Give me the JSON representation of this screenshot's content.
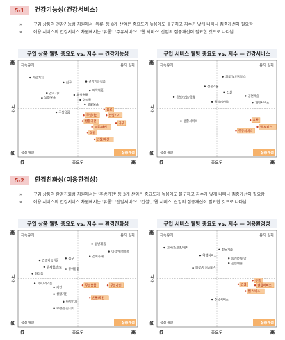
{
  "sections": [
    {
      "number": "5-1",
      "title": "건강기능성(건강서비스)",
      "bullets": [
        "구입 상품의 건강기능성 차원에서 '의류' 등 8개 산업은 중요도가 높음에도 불구하고 지수가 낮게 나타나 집중개선이 필요함",
        "이용 서비스의 건강서비스 차원에서는 '유통', '주유서비스', '웹 서비스' 산업의 집중개선이 필요한 것으로 나타남"
      ],
      "charts": [
        {
          "title": "구입 상품 웰빙 중요도 vs. 지수 — 건강기능성",
          "quadrants": [
            "지속유지",
            "유지 강화",
            "점진개선",
            "집중개선"
          ],
          "high": "高",
          "low": "低",
          "x_label": "중요도",
          "y_label": "지수",
          "xlim": [
            0,
            100
          ],
          "ylim": [
            0,
            100
          ],
          "points": [
            {
              "label": "의료기기",
              "x": 10,
              "y": 82,
              "highlight": false
            },
            {
              "label": "침구",
              "x": 38,
              "y": 77,
              "highlight": false
            },
            {
              "label": "건강기능식품",
              "x": 57,
              "y": 78,
              "highlight": false
            },
            {
              "label": "의약외품",
              "x": 60,
              "y": 69,
              "highlight": false
            },
            {
              "label": "간호기기",
              "x": 24,
              "y": 66,
              "highlight": false
            },
            {
              "label": "위생용품",
              "x": 47,
              "y": 64,
              "highlight": false
            },
            {
              "label": "유아용품",
              "x": 20,
              "y": 61,
              "highlight": false
            },
            {
              "label": "화장품",
              "x": 52,
              "y": 59,
              "highlight": false
            },
            {
              "label": "생활용품",
              "x": 56,
              "y": 54,
              "highlight": false
            },
            {
              "label": "주방용품",
              "x": 32,
              "y": 46,
              "highlight": false
            },
            {
              "label": "음료",
              "x": 72,
              "y": 49,
              "highlight": true
            },
            {
              "label": "주방가전",
              "x": 55,
              "y": 43,
              "highlight": true
            },
            {
              "label": "난방기기",
              "x": 74,
              "y": 43,
              "highlight": true
            },
            {
              "label": "생활가전",
              "x": 54,
              "y": 37,
              "highlight": true
            },
            {
              "label": "가구",
              "x": 82,
              "y": 35,
              "highlight": true
            },
            {
              "label": "의류/패션",
              "x": 62,
              "y": 31,
              "highlight": true
            },
            {
              "label": "의류",
              "x": 58,
              "y": 25,
              "highlight": true
            },
            {
              "label": "신발/패션",
              "x": 64,
              "y": 18,
              "highlight": true
            }
          ]
        },
        {
          "title": "구입 서비스 웰빙 중요도 vs. 지수 — 건강서비스",
          "quadrants": [
            "지속유지",
            "유지 강화",
            "점진개선",
            "집중개선"
          ],
          "high": "高",
          "low": "低",
          "x_label": "중요도",
          "y_label": "지수",
          "xlim": [
            0,
            100
          ],
          "ylim": [
            0,
            100
          ],
          "points": [
            {
              "label": "의료/보건서비스",
              "x": 55,
              "y": 83,
              "highlight": false
            },
            {
              "label": "전문기술",
              "x": 40,
              "y": 73,
              "highlight": false
            },
            {
              "label": "건설",
              "x": 56,
              "y": 67,
              "highlight": false
            },
            {
              "label": "은행/보험/금융",
              "x": 14,
              "y": 62,
              "highlight": false
            },
            {
              "label": "공연예술",
              "x": 74,
              "y": 63,
              "highlight": false
            },
            {
              "label": "음식/숙박업",
              "x": 46,
              "y": 57,
              "highlight": false
            },
            {
              "label": "개인서비스",
              "x": 80,
              "y": 56,
              "highlight": false
            },
            {
              "label": "생활서비스",
              "x": 20,
              "y": 37,
              "highlight": false
            },
            {
              "label": "유통",
              "x": 78,
              "y": 38,
              "highlight": true
            },
            {
              "label": "주유서비스",
              "x": 66,
              "y": 27,
              "highlight": true
            },
            {
              "label": "웹 서비스",
              "x": 84,
              "y": 31,
              "highlight": true
            }
          ]
        }
      ]
    },
    {
      "number": "5-2",
      "title": "환경친화성(이용환경성)",
      "bullets": [
        "구입 상품의 환경친화성 차원에서는 '주방가전' 등 3개 산업은 중요도가 높음에도 불구하고 지수가 낮게 나타나 집중개선이 필요함",
        "이용 서비스의 건강서비스 차원에서는 '유통', '렌탈서비스', '건설', '웹 서비스' 산업의 집중개선이 필요한 것으로 나타남"
      ],
      "charts": [
        {
          "title": "구입 상품 웰빙 중요도 vs. 지수 — 환경친화성",
          "quadrants": [
            "지속유지",
            "유지 강화",
            "점진개선",
            "집중개선"
          ],
          "high": "高",
          "low": "低",
          "x_label": "중요도",
          "y_label": "지수",
          "xlim": [
            0,
            100
          ],
          "ylim": [
            0,
            100
          ],
          "points": [
            {
              "label": "일반제품",
              "x": 62,
              "y": 86,
              "highlight": false
            },
            {
              "label": "이샵/위생용품",
              "x": 76,
              "y": 78,
              "highlight": false
            },
            {
              "label": "건축자재",
              "x": 60,
              "y": 73,
              "highlight": false
            },
            {
              "label": "침구",
              "x": 40,
              "y": 71,
              "highlight": false
            },
            {
              "label": "건강기능식품",
              "x": 18,
              "y": 69,
              "highlight": false
            },
            {
              "label": "유제품/음료",
              "x": 22,
              "y": 62,
              "highlight": false
            },
            {
              "label": "유아용품",
              "x": 40,
              "y": 60,
              "highlight": false
            },
            {
              "label": "화장품",
              "x": 12,
              "y": 55,
              "highlight": false
            },
            {
              "label": "의료/의약품",
              "x": 14,
              "y": 45,
              "highlight": false
            },
            {
              "label": "가전",
              "x": 30,
              "y": 41,
              "highlight": false
            },
            {
              "label": "생활가전",
              "x": 30,
              "y": 34,
              "highlight": false
            },
            {
              "label": "난방기기",
              "x": 38,
              "y": 26,
              "highlight": false
            },
            {
              "label": "주방용품",
              "x": 54,
              "y": 43,
              "highlight": true
            },
            {
              "label": "주방가전",
              "x": 75,
              "y": 43,
              "highlight": true
            },
            {
              "label": "신발/패션",
              "x": 60,
              "y": 30,
              "highlight": true
            },
            {
              "label": "우편/통신기기",
              "x": 30,
              "y": 19,
              "highlight": false
            }
          ]
        },
        {
          "title": "구입 서비스 웰빙 중요도 vs. 지수 — 이용환경성",
          "quadrants": [
            "지속유지",
            "유지 강화",
            "점진개선",
            "집중개선"
          ],
          "high": "高",
          "low": "低",
          "x_label": "중요도",
          "y_label": "지수",
          "xlim": [
            0,
            100
          ],
          "ylim": [
            0,
            100
          ],
          "points": [
            {
              "label": "교육/스포츠/레저",
              "x": 6,
              "y": 82,
              "highlight": false
            },
            {
              "label": "전문기술",
              "x": 52,
              "y": 80,
              "highlight": false
            },
            {
              "label": "여행서비스",
              "x": 36,
              "y": 74,
              "highlight": false
            },
            {
              "label": "통신/전화망",
              "x": 60,
              "y": 71,
              "highlight": false
            },
            {
              "label": "공연예술",
              "x": 60,
              "y": 66,
              "highlight": false
            },
            {
              "label": "의료/보건서비스",
              "x": 30,
              "y": 61,
              "highlight": false
            },
            {
              "label": "유통",
              "x": 80,
              "y": 48,
              "highlight": true
            },
            {
              "label": "건설",
              "x": 68,
              "y": 44,
              "highlight": true
            },
            {
              "label": "렌탈서비스",
              "x": 82,
              "y": 43,
              "highlight": true
            },
            {
              "label": "웹 서비스",
              "x": 74,
              "y": 37,
              "highlight": true
            },
            {
              "label": "주유서비스",
              "x": 46,
              "y": 28,
              "highlight": false
            }
          ]
        }
      ]
    }
  ]
}
